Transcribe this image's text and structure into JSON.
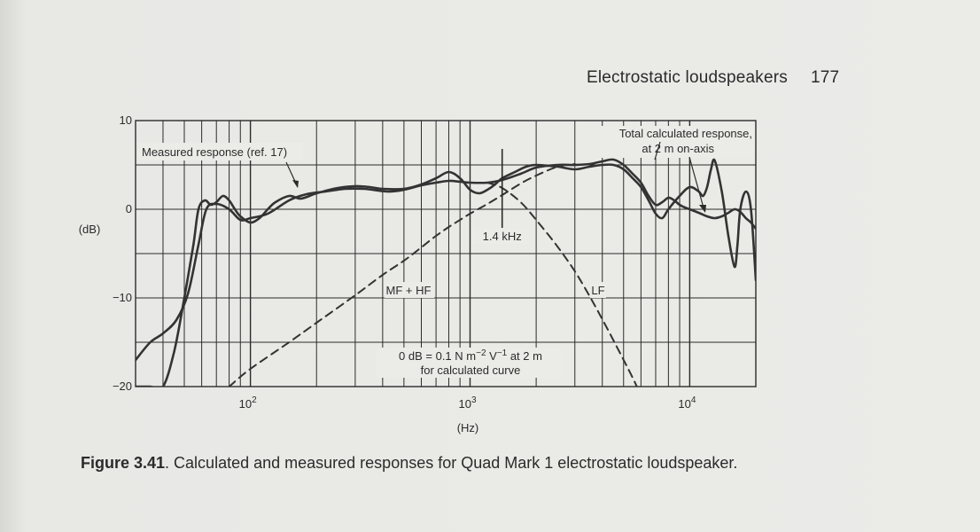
{
  "header": {
    "section_title": "Electrostatic loudspeakers",
    "page_number": "177"
  },
  "caption": {
    "label": "Figure 3.41",
    "text": ". Calculated and measured responses for Quad Mark 1 electrostatic loudspeaker."
  },
  "chart_data": {
    "type": "line",
    "x_scale": "log",
    "xlim": [
      30,
      20000
    ],
    "ylim": [
      -20,
      10
    ],
    "ylabel": "(dB)",
    "xlabel": "(Hz)",
    "grid": true,
    "y_ticks": [
      {
        "value": 10,
        "label": "10"
      },
      {
        "value": 0,
        "label": "0"
      },
      {
        "value": -10,
        "label": "−10"
      },
      {
        "value": -20,
        "label": "−20"
      }
    ],
    "x_ticks": [
      {
        "value": 100,
        "base": "10",
        "exp": "2"
      },
      {
        "value": 1000,
        "base": "10",
        "exp": "3"
      },
      {
        "value": 10000,
        "base": "10",
        "exp": "4"
      }
    ],
    "annotations": {
      "measured": "Measured response (ref. 17)",
      "total_line1": "Total calculated response,",
      "total_line2": "at 2 m on-axis",
      "crossover": "1.4 kHz",
      "mf_hf": "MF + HF",
      "lf": "LF",
      "note_prefix": "0 dB = 0.1 N m",
      "note_exp1": "−2",
      "note_mid": " V",
      "note_exp2": "−1",
      "note_suffix": "  at 2 m",
      "note_line2": "for calculated curve"
    },
    "series": [
      {
        "key": "measured",
        "style": "solid",
        "x": [
          30,
          35,
          40,
          46,
          52,
          58,
          63,
          70,
          80,
          90,
          100,
          120,
          150,
          180,
          220,
          270,
          330,
          420,
          500,
          600,
          700,
          800,
          900,
          1000,
          1200,
          1400,
          1700,
          2000,
          2500,
          3000,
          3500,
          4000,
          4500,
          5000,
          5500,
          6000,
          6500,
          7000,
          7500,
          8000,
          8500,
          9000,
          9500,
          10000,
          11000,
          12000,
          13000,
          14000,
          15000,
          16000,
          17000,
          18000,
          19000,
          20000
        ],
        "y": [
          -17,
          -15,
          -14,
          -12.5,
          -9.5,
          -4,
          0,
          0.6,
          0,
          -1.2,
          -1,
          -0.5,
          1,
          1.7,
          2,
          2.3,
          2.3,
          2,
          2.2,
          2.7,
          3,
          3.2,
          3.1,
          3,
          3,
          3.3,
          4,
          4.7,
          5,
          5,
          5.1,
          5.4,
          5.6,
          5,
          4,
          3,
          1.5,
          0.5,
          0.8,
          1.3,
          1,
          0.5,
          0.2,
          0,
          -0.4,
          -0.8,
          -1,
          -0.8,
          -0.4,
          0,
          -0.3,
          -1,
          -1.5,
          -2.2
        ]
      },
      {
        "key": "total",
        "style": "solid",
        "x": [
          30,
          35,
          40,
          45,
          50,
          55,
          58,
          62,
          66,
          70,
          75,
          80,
          85,
          90,
          100,
          110,
          120,
          130,
          150,
          170,
          200,
          250,
          300,
          350,
          400,
          500,
          600,
          700,
          800,
          900,
          1000,
          1100,
          1200,
          1300,
          1400,
          1600,
          1800,
          2000,
          2500,
          3000,
          3500,
          4000,
          4500,
          5000,
          5500,
          6000,
          6500,
          7000,
          7500,
          8000,
          9000,
          10000,
          11000,
          11500,
          12000,
          12500,
          13000,
          14000,
          15000,
          16000,
          16500,
          17000,
          18000,
          19000,
          20000
        ],
        "y": [
          -20,
          -20,
          -20,
          -16,
          -10,
          -4,
          0,
          1,
          0.5,
          0.8,
          1.5,
          1,
          0,
          -0.8,
          -1.5,
          -1,
          0,
          0.8,
          1.5,
          1.2,
          1.8,
          2.4,
          2.6,
          2.5,
          2.3,
          2.3,
          2.8,
          3.5,
          4.2,
          3.5,
          2.2,
          1.8,
          2.2,
          2.8,
          3.5,
          4.2,
          4.8,
          5,
          4.8,
          4.5,
          4.8,
          5,
          5,
          4.5,
          3.5,
          2.5,
          1,
          -0.5,
          -1,
          0,
          1.5,
          2.5,
          2,
          1.5,
          2.5,
          4.5,
          5.5,
          2,
          -3,
          -6.5,
          -4,
          0,
          2,
          0,
          -8
        ]
      },
      {
        "key": "mf_hf",
        "style": "dashed",
        "x": [
          80,
          100,
          150,
          200,
          300,
          400,
          500,
          600,
          700,
          800,
          900,
          1000,
          1200,
          1400,
          1700,
          2000,
          2500,
          3000
        ],
        "y": [
          -20,
          -18,
          -15,
          -12.8,
          -9.7,
          -7.4,
          -5.8,
          -4.3,
          -3,
          -2,
          -1.2,
          -0.5,
          0.6,
          1.6,
          2.9,
          3.8,
          4.8,
          5.1
        ]
      },
      {
        "key": "lf",
        "style": "dashed",
        "x": [
          1200,
          1400,
          1700,
          2000,
          2500,
          3000,
          3500,
          4000,
          4500,
          5000,
          5500,
          6000,
          6500,
          7000
        ],
        "y": [
          3,
          2.4,
          0.8,
          -1.2,
          -4.2,
          -7,
          -9.8,
          -12.4,
          -14.8,
          -17,
          -19,
          -21,
          -22.8,
          -24.5
        ]
      }
    ]
  }
}
